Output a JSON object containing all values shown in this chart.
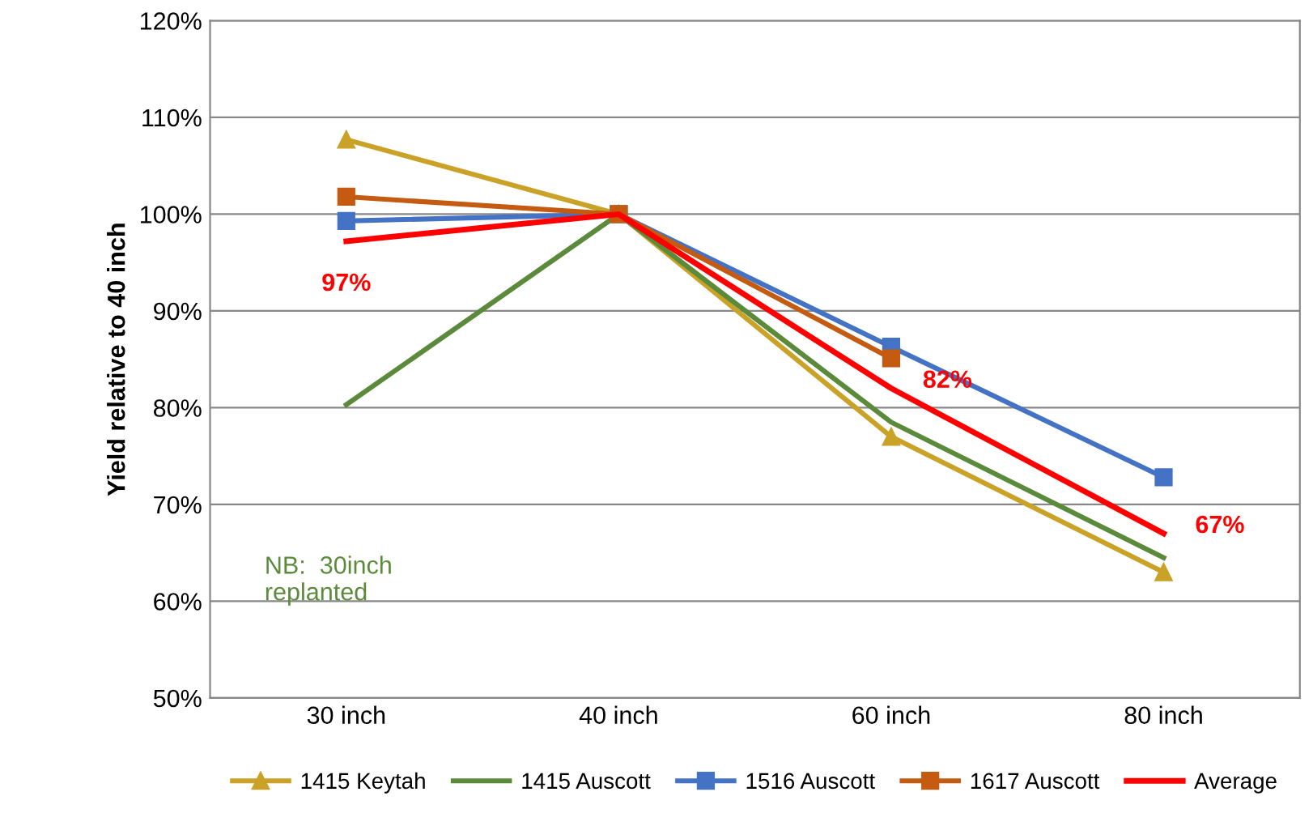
{
  "chart_data": {
    "type": "line",
    "ylabel": "Yield relative to 40 inch",
    "categories": [
      "30 inch",
      "40 inch",
      "60 inch",
      "80 inch"
    ],
    "series": [
      {
        "name": "1415 Keytah",
        "color": "#c9a227",
        "marker": "triangle",
        "values": [
          107.7,
          100,
          77,
          63
        ]
      },
      {
        "name": "1415 Auscott",
        "color": "#5a8a3a",
        "marker": "none",
        "values": [
          80.3,
          100,
          78.5,
          64.5
        ]
      },
      {
        "name": "1516 Auscott",
        "color": "#4472c4",
        "marker": "square",
        "values": [
          99.3,
          100,
          86.3,
          72.8
        ]
      },
      {
        "name": "1617 Auscott",
        "color": "#c55a11",
        "marker": "square",
        "values": [
          101.8,
          100,
          85.1,
          null
        ]
      },
      {
        "name": "Average",
        "color": "#ff0000",
        "marker": "none",
        "values": [
          97.2,
          100,
          82,
          67
        ],
        "value_labels": [
          "97%",
          null,
          "82%",
          "67%"
        ]
      }
    ],
    "ylim": [
      50,
      120
    ],
    "yticks": [
      {
        "value": 50,
        "label": "50%"
      },
      {
        "value": 60,
        "label": "60%"
      },
      {
        "value": 70,
        "label": "70%"
      },
      {
        "value": 80,
        "label": "80%"
      },
      {
        "value": 90,
        "label": "90%"
      },
      {
        "value": 100,
        "label": "100%"
      },
      {
        "value": 110,
        "label": "110%"
      },
      {
        "value": 120,
        "label": "120%"
      }
    ],
    "grid": "y",
    "legend": "bottom",
    "annotations": [
      "NB:  30inch\nreplanted"
    ]
  }
}
